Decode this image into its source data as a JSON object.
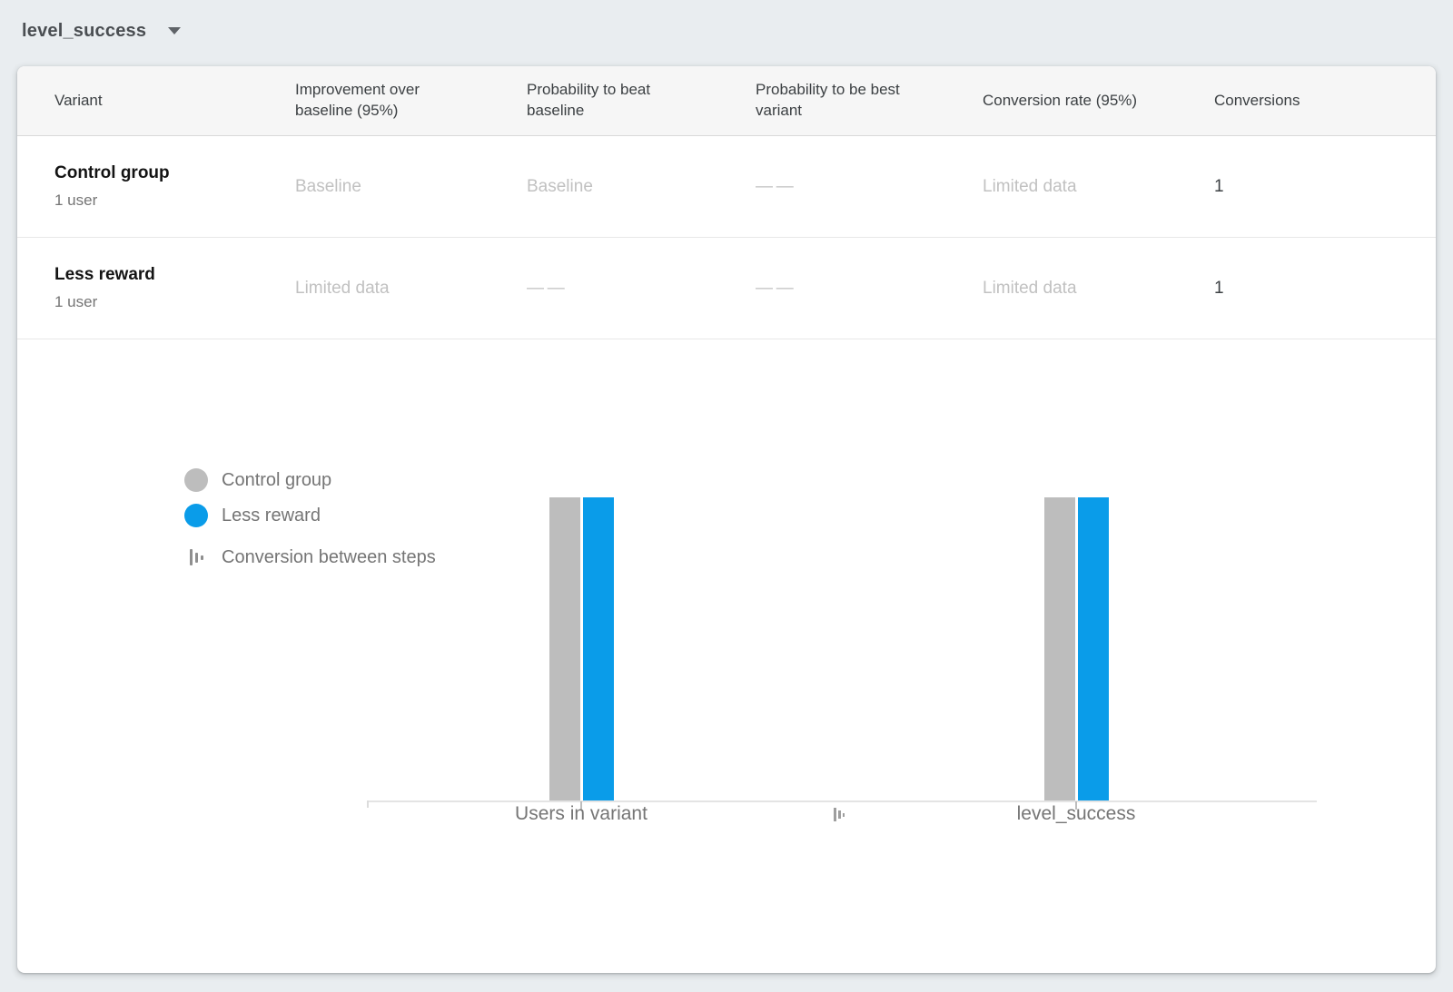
{
  "toolbar": {
    "metric_selector": "level_success"
  },
  "table": {
    "columns": [
      "Variant",
      "Improvement over baseline (95%)",
      "Probability to beat baseline",
      "Probability to be best variant",
      "Conversion rate (95%)",
      "Conversions"
    ],
    "rows": [
      {
        "name": "Control group",
        "users": "1 user",
        "improvement": "Baseline",
        "prob_beat_baseline": "Baseline",
        "prob_best_variant": "— —",
        "conversion_rate": "Limited data",
        "conversions": "1"
      },
      {
        "name": "Less reward",
        "users": "1 user",
        "improvement": "Limited data",
        "prob_beat_baseline": "— —",
        "prob_best_variant": "— —",
        "conversion_rate": "Limited data",
        "conversions": "1"
      }
    ]
  },
  "chart_data": {
    "type": "bar",
    "categories": [
      "Users in variant",
      "level_success"
    ],
    "series": [
      {
        "name": "Control group",
        "color": "#bdbdbd",
        "values": [
          1,
          1
        ]
      },
      {
        "name": "Less reward",
        "color": "#0a9ce9",
        "values": [
          1,
          1
        ]
      }
    ],
    "conversion_legend_label": "Conversion between steps",
    "ylim": [
      0,
      1
    ],
    "grid": false,
    "legend_position": "left",
    "title": "",
    "xlabel": "",
    "ylabel": ""
  },
  "colors": {
    "accent_blue": "#0a9ce9",
    "neutral_gray": "#bdbdbd",
    "page_background": "#e9edf0"
  }
}
